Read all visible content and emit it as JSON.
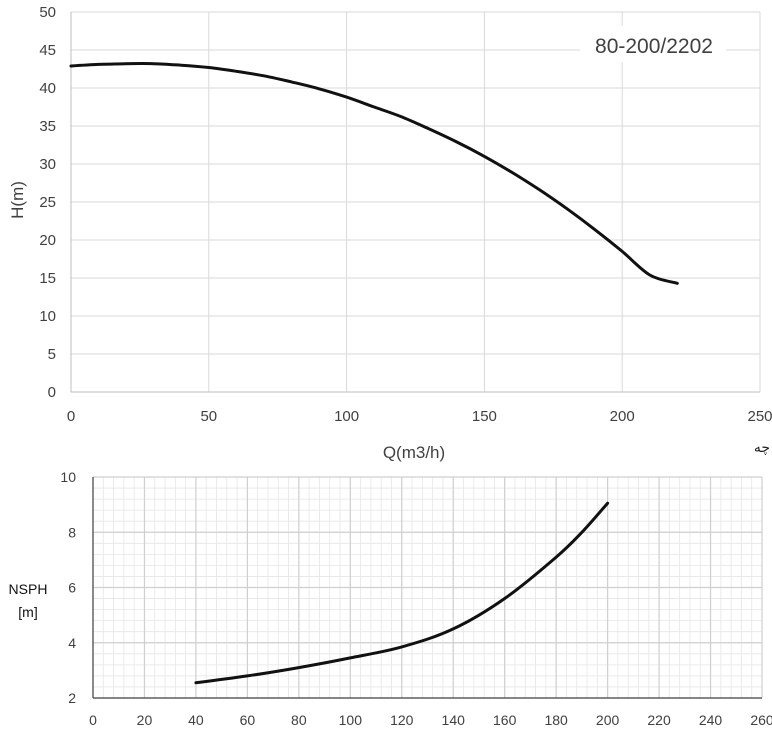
{
  "chart_data": [
    {
      "type": "line",
      "title": "",
      "annotation": "80-200/2202",
      "xlabel": "Q(m3/h)",
      "ylabel": "H(m)",
      "xlim": [
        0,
        250
      ],
      "ylim": [
        0,
        50
      ],
      "xticks": [
        "0",
        "50",
        "100",
        "150",
        "200",
        "250"
      ],
      "yticks": [
        "0",
        "5",
        "10",
        "15",
        "20",
        "25",
        "30",
        "35",
        "40",
        "45",
        "50"
      ],
      "grid": "major",
      "series": [
        {
          "x": [
            0,
            10,
            20,
            30,
            40,
            50,
            60,
            70,
            80,
            90,
            100,
            110,
            120,
            130,
            140,
            150,
            160,
            170,
            180,
            190,
            200,
            210,
            220
          ],
          "y": [
            42.9,
            43.1,
            43.2,
            43.2,
            43.0,
            42.7,
            42.2,
            41.6,
            40.8,
            39.9,
            38.8,
            37.5,
            36.2,
            34.6,
            32.9,
            31.0,
            28.9,
            26.6,
            24.1,
            21.4,
            18.5,
            15.4,
            14.3
          ]
        }
      ],
      "line_color": "#111111",
      "grid_color": "#d9d9d9"
    },
    {
      "type": "line",
      "title": "",
      "xlabel": "",
      "ylabel": [
        "NSPH",
        "[m]"
      ],
      "xlim": [
        0,
        260
      ],
      "ylim": [
        2,
        10
      ],
      "xticks": [
        "0",
        "20",
        "40",
        "60",
        "80",
        "100",
        "120",
        "140",
        "160",
        "180",
        "200",
        "220",
        "240",
        "260"
      ],
      "yticks": [
        "2",
        "4",
        "6",
        "8",
        "10"
      ],
      "grid": "major+minor",
      "series": [
        {
          "x": [
            40,
            60,
            80,
            100,
            120,
            140,
            160,
            180,
            190,
            200
          ],
          "y": [
            2.55,
            2.8,
            3.1,
            3.45,
            3.85,
            4.5,
            5.6,
            7.1,
            8.0,
            9.05
          ]
        }
      ],
      "line_color": "#111111",
      "grid_color": "#cfcfcf"
    }
  ],
  "stray_text": "چه"
}
